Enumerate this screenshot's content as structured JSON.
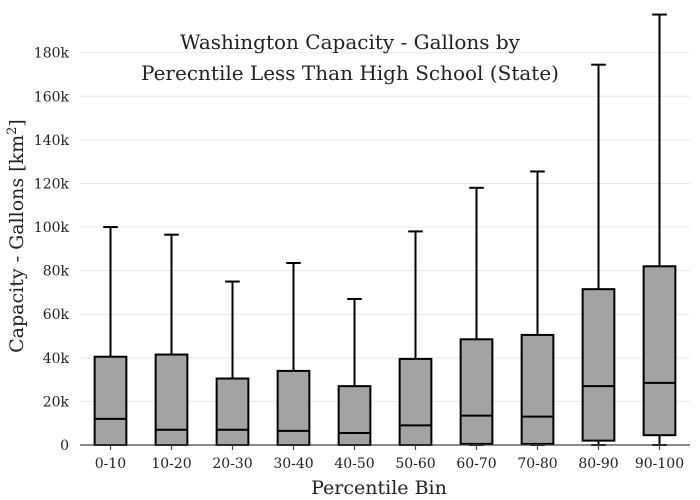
{
  "chart_data": {
    "type": "box",
    "title_lines": [
      "Washington Capacity - Gallons by",
      "Perecntile Less Than High School (State)"
    ],
    "xlabel": "Percentile Bin",
    "ylabel_main": "Capacity - Gallons  [km",
    "ylabel_sup": "2",
    "ylabel_end": "]",
    "ylim": [
      0,
      195000
    ],
    "y_ticks": [
      0,
      20000,
      40000,
      60000,
      80000,
      100000,
      120000,
      140000,
      160000,
      180000
    ],
    "y_tick_labels": [
      "0",
      "20k",
      "40k",
      "60k",
      "80k",
      "100k",
      "120k",
      "140k",
      "160k",
      "180k"
    ],
    "categories": [
      "0-10",
      "10-20",
      "20-30",
      "30-40",
      "40-50",
      "50-60",
      "60-70",
      "70-80",
      "80-90",
      "90-100"
    ],
    "boxes": [
      {
        "min": 0,
        "q1": 0,
        "median": 12000,
        "q3": 40500,
        "max": 100000
      },
      {
        "min": 0,
        "q1": 0,
        "median": 7000,
        "q3": 41500,
        "max": 96500
      },
      {
        "min": 0,
        "q1": 0,
        "median": 7000,
        "q3": 30500,
        "max": 75000
      },
      {
        "min": 0,
        "q1": 0,
        "median": 6500,
        "q3": 34000,
        "max": 83500
      },
      {
        "min": 0,
        "q1": 0,
        "median": 5500,
        "q3": 27000,
        "max": 67000
      },
      {
        "min": 0,
        "q1": 0,
        "median": 9000,
        "q3": 39500,
        "max": 98000
      },
      {
        "min": 0,
        "q1": 500,
        "median": 13500,
        "q3": 48500,
        "max": 118000
      },
      {
        "min": 0,
        "q1": 500,
        "median": 13000,
        "q3": 50500,
        "max": 125500
      },
      {
        "min": 0,
        "q1": 2000,
        "median": 27000,
        "q3": 71500,
        "max": 174500
      },
      {
        "min": 0,
        "q1": 4500,
        "median": 28500,
        "q3": 82000,
        "max": 197500
      }
    ],
    "grid": true,
    "colors": {
      "box_fill": "#a3a3a3",
      "box_stroke": "#000000"
    }
  }
}
